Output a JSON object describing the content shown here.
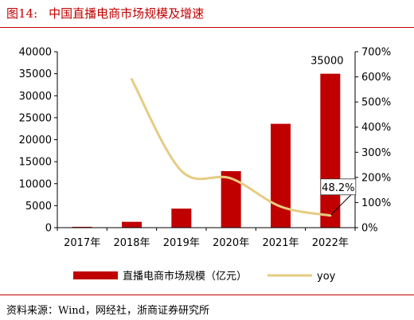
{
  "header": {
    "figure_number": "图14:",
    "figure_title": "中国直播电商市场规模及增速"
  },
  "source": "资料来源：Wind，网经社，浙商证券研究所",
  "chart_data": {
    "type": "bar",
    "categories": [
      "2017年",
      "2018年",
      "2019年",
      "2020年",
      "2021年",
      "2022年"
    ],
    "series": [
      {
        "name": "直播电商市场规模（亿元）",
        "type": "bar",
        "axis": "left",
        "color": "#c00000",
        "values": [
          190,
          1330,
          4338,
          12850,
          23615,
          35000
        ]
      },
      {
        "name": "yoy",
        "type": "line",
        "axis": "right",
        "color": "#e6cc80",
        "values": [
          null,
          590,
          226,
          196,
          84,
          48.2
        ]
      }
    ],
    "left_axis": {
      "ylim": [
        0,
        40000
      ],
      "ticks": [
        "0",
        "5000",
        "10000",
        "15000",
        "20000",
        "25000",
        "30000",
        "35000",
        "40000"
      ]
    },
    "right_axis": {
      "ylim": [
        0,
        700
      ],
      "ticks": [
        "0%",
        "100%",
        "200%",
        "300%",
        "400%",
        "500%",
        "600%",
        "700%"
      ]
    },
    "annotations": [
      {
        "text": "35000",
        "category": "2022年"
      },
      {
        "text": "48.2%",
        "category": "2022年"
      }
    ],
    "legend": {
      "position": "bottom",
      "items": [
        "直播电商市场规模（亿元）",
        "yoy"
      ]
    },
    "grid": false
  }
}
